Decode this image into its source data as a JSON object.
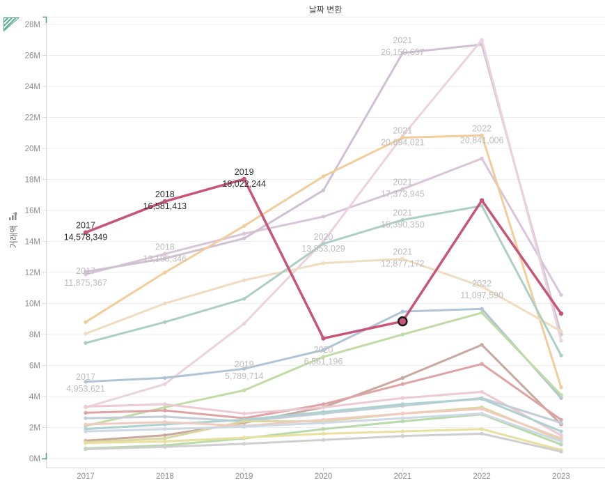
{
  "title": "날짜 변환",
  "y_axis": {
    "title": "거래액",
    "tick_labels": [
      "0M",
      "2M",
      "4M",
      "6M",
      "8M",
      "10M",
      "12M",
      "14M",
      "16M",
      "18M",
      "20M",
      "22M",
      "24M",
      "26M",
      "28M"
    ]
  },
  "x_axis": {
    "tick_labels": [
      "2017",
      "2018",
      "2019",
      "2020",
      "2021",
      "2022",
      "2023"
    ]
  },
  "icons": {
    "corner_indicator": "striped-triangle",
    "axis_sort": "sort-arrow",
    "axis_range_marks": "green-corner-brackets"
  },
  "colors": {
    "highlight": "#c65578",
    "grid": "#eeeeee",
    "axis": "#d9d9d9",
    "tick_text": "#8d8d8d",
    "dim_label": "#bdbdbd",
    "dark_label": "#2e2e2e",
    "indicator_green": "#55a98f"
  },
  "chart_data": {
    "type": "line",
    "x": [
      2017,
      2018,
      2019,
      2020,
      2021,
      2022,
      2023
    ],
    "xlabel": "",
    "ylabel": "거래액",
    "ylim": [
      0,
      28000000
    ],
    "y_tick_step": 2000000,
    "grid": true,
    "legend": "none",
    "series": [
      {
        "name": "lavender",
        "color": "#d8c6d8",
        "values": [
          11875367,
          13198346,
          14500000,
          15600000,
          17373945,
          19350000,
          10550000
        ]
      },
      {
        "name": "mauve",
        "color": "#cfc0d4",
        "values": [
          12050000,
          12900000,
          14200000,
          17300000,
          26159657,
          26700000,
          8000000
        ]
      },
      {
        "name": "rose-pale",
        "color": "#ead3dc",
        "values": [
          3300000,
          4800000,
          8700000,
          14000000,
          20800000,
          27000000,
          7600000
        ]
      },
      {
        "name": "orange",
        "color": "#f2cd9c",
        "values": [
          8800000,
          12000000,
          15000000,
          18200000,
          20694021,
          20841006,
          4600000
        ]
      },
      {
        "name": "tan",
        "color": "#f0dcc0",
        "values": [
          8050000,
          10000000,
          11500000,
          12600000,
          12877172,
          11097590,
          8200000
        ]
      },
      {
        "name": "teal",
        "color": "#accfc5",
        "values": [
          7450000,
          8800000,
          10300000,
          13853029,
          15390350,
          16300000,
          6650000
        ]
      },
      {
        "name": "blue",
        "color": "#afc4d8",
        "values": [
          4953621,
          5200000,
          5789714,
          7000000,
          9480000,
          9650000,
          3900000
        ]
      },
      {
        "name": "green",
        "color": "#c0dca4",
        "values": [
          2100000,
          3300000,
          4400000,
          6561196,
          8000000,
          9400000,
          4100000
        ]
      },
      {
        "name": "brown",
        "color": "#c9a89f",
        "values": [
          1150000,
          1500000,
          2300000,
          3300000,
          5200000,
          7330000,
          2200000
        ]
      },
      {
        "name": "red",
        "color": "#dfa3a3",
        "values": [
          2950000,
          3100000,
          2600000,
          3500000,
          4800000,
          6100000,
          2500000
        ]
      },
      {
        "name": "pink",
        "color": "#edc9d4",
        "values": [
          3350000,
          3500000,
          2900000,
          3300000,
          3900000,
          4300000,
          1500000
        ]
      },
      {
        "name": "gray-blue",
        "color": "#c2cdd7",
        "values": [
          2600000,
          2700000,
          2400000,
          2900000,
          3400000,
          3900000,
          2300000
        ]
      },
      {
        "name": "teal-2",
        "color": "#aed2d1",
        "values": [
          1900000,
          2200000,
          2500000,
          3000000,
          3500000,
          3850000,
          1750000
        ]
      },
      {
        "name": "olive",
        "color": "#d8d8a0",
        "values": [
          1050000,
          1300000,
          2400000,
          2400000,
          2900000,
          3300000,
          1200000
        ]
      },
      {
        "name": "green-2",
        "color": "#b7d9ab",
        "values": [
          650000,
          850000,
          1300000,
          1900000,
          2400000,
          2850000,
          900000
        ]
      },
      {
        "name": "yellow",
        "color": "#e9df9f",
        "values": [
          1000000,
          1100000,
          1350000,
          1600000,
          1750000,
          1900000,
          550000
        ]
      },
      {
        "name": "gray",
        "color": "#cfcfcf",
        "values": [
          600000,
          750000,
          950000,
          1200000,
          1450000,
          1600000,
          450000
        ]
      },
      {
        "name": "salmon",
        "color": "#f1ccbe",
        "values": [
          2200000,
          2350000,
          2100000,
          2500000,
          2900000,
          3200000,
          1300000
        ]
      },
      {
        "name": "light-blue",
        "color": "#cdd9e5",
        "values": [
          1750000,
          1900000,
          2050000,
          2300000,
          2600000,
          2900000,
          1100000
        ]
      },
      {
        "name": "highlight",
        "color": "#c65578",
        "highlight": true,
        "values": [
          14578349,
          16581413,
          18022244,
          7750000,
          8850000,
          16650000,
          9350000
        ]
      }
    ],
    "selected_point": {
      "series": "highlight",
      "year": 2021
    },
    "point_labels": [
      {
        "year": "2017",
        "value": "14,578,349",
        "style": "dark",
        "dy": 0
      },
      {
        "year": "2018",
        "value": "16,581,413",
        "style": "dark",
        "dy": 0
      },
      {
        "year": "2019",
        "value": "18,022,244",
        "style": "dark",
        "dy": 0
      },
      {
        "year": "2021",
        "value": "26,159,657",
        "style": "dim",
        "dy": -8
      },
      {
        "year": "2021",
        "value": "20,694,021",
        "style": "dim",
        "dy": 0
      },
      {
        "year": "2022",
        "value": "20,841,006",
        "style": "dim",
        "dy": 0
      },
      {
        "year": "2021",
        "value": "17,373,945",
        "style": "dim",
        "dy": 0
      },
      {
        "year": "2021",
        "value": "15,390,350",
        "style": "dim",
        "dy": 0
      },
      {
        "year": "2020",
        "value": "13,853,029",
        "style": "dim",
        "dy": 0
      },
      {
        "year": "2021",
        "value": "12,877,172",
        "style": "dim",
        "dy": 0
      },
      {
        "year": "2022",
        "value": "11,097,590",
        "style": "dim",
        "dy": 6
      },
      {
        "year": "2018",
        "value": "13,198,346",
        "style": "dim",
        "dy": 0
      },
      {
        "year": "2017",
        "value": "11,875,367",
        "style": "dim",
        "dy": 5
      },
      {
        "year": "2017",
        "value": "4,953,621",
        "style": "dim",
        "dy": 3
      },
      {
        "year": "2019",
        "value": "5,789,714",
        "style": "dim",
        "dy": 4
      },
      {
        "year": "2020",
        "value": "6,561,196",
        "style": "dim",
        "dy": 0
      }
    ]
  }
}
